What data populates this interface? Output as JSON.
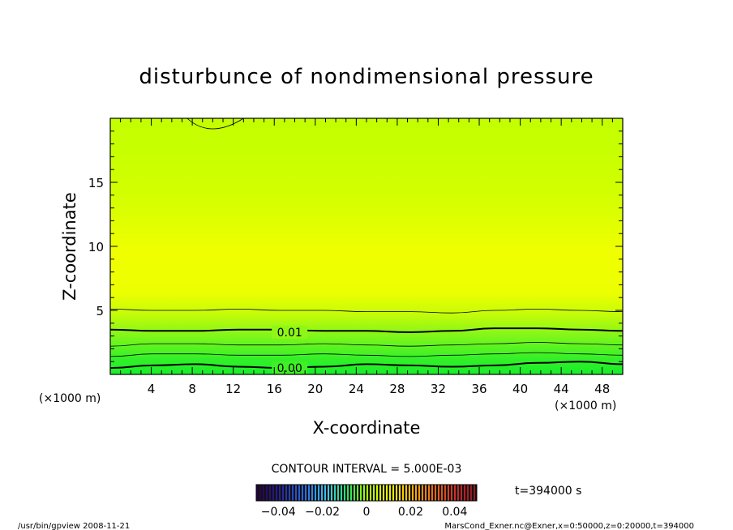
{
  "chart_data": {
    "type": "contour",
    "title": "disturbunce of nondimensional pressure",
    "xlabel": "X-coordinate",
    "ylabel": "Z-coordinate",
    "x_unit": "(×1000 m)",
    "y_unit": "(×1000 m)",
    "xlim": [
      0,
      50
    ],
    "ylim": [
      0,
      20
    ],
    "xticks": [
      4,
      8,
      12,
      16,
      20,
      24,
      28,
      32,
      36,
      40,
      44,
      48
    ],
    "yticks": [
      5,
      10,
      15
    ],
    "contour_interval_text": "CONTOUR INTERVAL = 5.000E-03",
    "time_text": "t=394000 s",
    "contour_labels": [
      {
        "text": "0.01",
        "x": 17.5,
        "z": 3.3
      },
      {
        "text": "0.00",
        "x": 17.5,
        "z": 0.5
      }
    ],
    "contour_lines": [
      {
        "z": [
          0.5,
          0.7,
          0.8,
          0.6,
          0.5,
          0.6,
          0.8,
          0.7,
          0.6,
          0.7,
          0.9,
          1.0,
          0.8
        ],
        "width": 2.0
      },
      {
        "z": [
          1.4,
          1.6,
          1.6,
          1.5,
          1.5,
          1.6,
          1.5,
          1.4,
          1.5,
          1.6,
          1.7,
          1.6,
          1.5
        ],
        "width": 0.8
      },
      {
        "z": [
          2.2,
          2.4,
          2.4,
          2.3,
          2.3,
          2.4,
          2.3,
          2.2,
          2.3,
          2.4,
          2.5,
          2.4,
          2.3
        ],
        "width": 0.8
      },
      {
        "z": [
          3.5,
          3.4,
          3.4,
          3.5,
          3.5,
          3.4,
          3.4,
          3.3,
          3.4,
          3.6,
          3.6,
          3.5,
          3.4
        ],
        "width": 2.0
      },
      {
        "z": [
          5.1,
          5.0,
          5.0,
          5.1,
          5.0,
          5.0,
          4.9,
          4.9,
          4.8,
          5.0,
          5.1,
          5.0,
          4.9
        ],
        "width": 0.8
      }
    ],
    "top_feature_x": [
      7.5,
      13.0
    ],
    "colorbar": {
      "min": -0.05,
      "max": 0.05,
      "ticks": [
        "−0.04",
        "−0.02",
        "0",
        "0.02",
        "0.04"
      ],
      "tick_values": [
        -0.04,
        -0.02,
        0,
        0.02,
        0.04
      ]
    },
    "fill_colors": {
      "bottom": "#1ee830",
      "mid": "#eeff00",
      "top": "#c6ff00"
    }
  },
  "footer": {
    "left": "/usr/bin/gpview   2008-11-21",
    "right": "MarsCond_Exner.nc@Exner,x=0:50000,z=0:20000,t=394000"
  }
}
